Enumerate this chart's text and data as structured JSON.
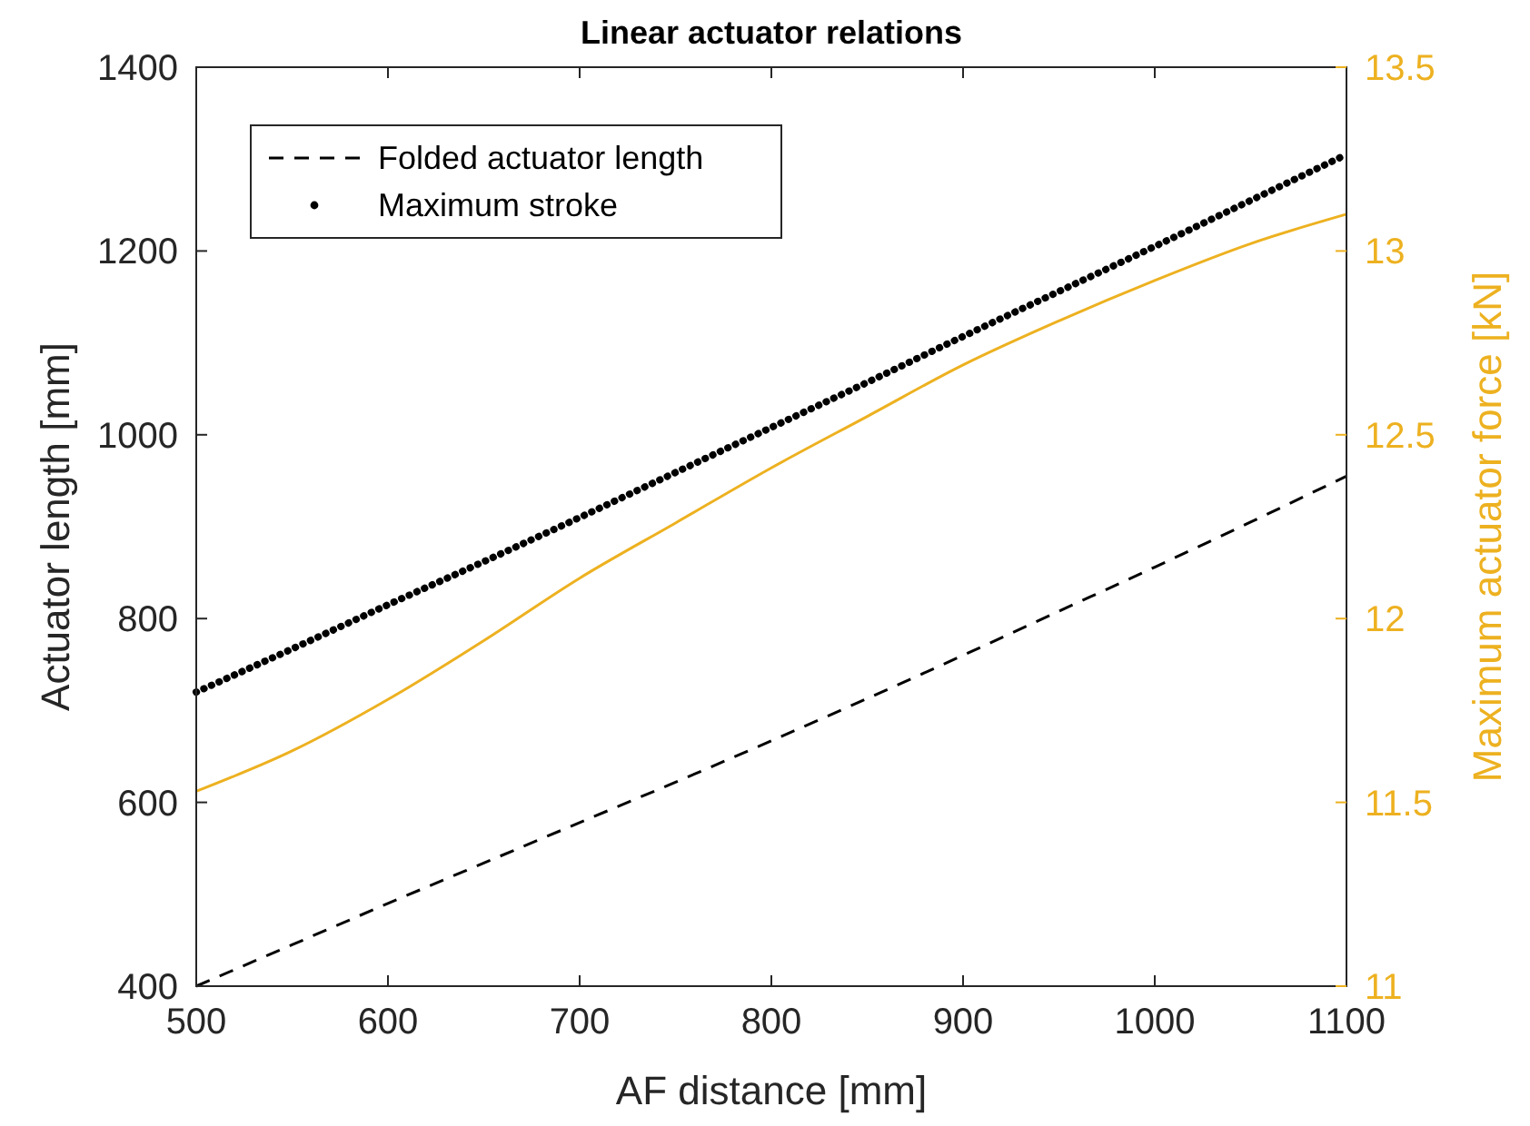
{
  "chart_data": {
    "type": "line",
    "title": "Linear actuator relations",
    "xlabel": "AF distance [mm]",
    "ylabel": "Actuator length [mm]",
    "y2label": "Maximum actuator force [kN]",
    "xlim": [
      500,
      1100
    ],
    "xticks": [
      500,
      600,
      700,
      800,
      900,
      1000,
      1100
    ],
    "ylim": [
      400,
      1400
    ],
    "yticks": [
      400,
      600,
      800,
      1000,
      1200,
      1400
    ],
    "y2lim": [
      11,
      13.5
    ],
    "y2ticks": [
      11,
      11.5,
      12,
      12.5,
      13,
      13.5
    ],
    "x": [
      500,
      550,
      600,
      650,
      700,
      750,
      800,
      850,
      900,
      950,
      1000,
      1050,
      1100
    ],
    "legend": "top left",
    "grid": false,
    "series": [
      {
        "name": "Folded actuator length",
        "color": "#000000",
        "line_style": "dashed",
        "values": [
          400,
          445,
          490,
          534,
          578,
          622,
          667,
          713,
          760,
          808,
          856,
          905,
          955
        ]
      },
      {
        "name": "Maximum stroke",
        "color": "#000000",
        "line_style": "dotted",
        "values": [
          720,
          767,
          815,
          862,
          910,
          959,
          1008,
          1057,
          1107,
          1156,
          1205,
          1255,
          1305
        ]
      },
      {
        "color": "#edb120",
        "line_style": "solid",
        "axis": "y2",
        "values": [
          11.53,
          11.64,
          11.78,
          11.94,
          12.11,
          12.26,
          12.41,
          12.55,
          12.69,
          12.81,
          12.92,
          13.02,
          13.1
        ]
      }
    ]
  }
}
